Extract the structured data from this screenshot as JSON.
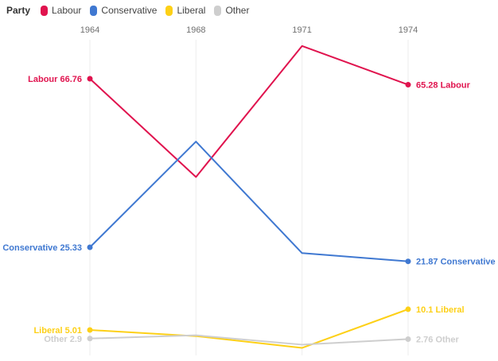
{
  "legend": {
    "title": "Party",
    "items": [
      {
        "label": "Labour",
        "color": "#e0134e"
      },
      {
        "label": "Conservative",
        "color": "#3f78d1"
      },
      {
        "label": "Liberal",
        "color": "#fdd017"
      },
      {
        "label": "Other",
        "color": "#cecece"
      }
    ]
  },
  "chart_data": {
    "type": "line",
    "x_axis": {
      "position": "top",
      "categories": [
        "1964",
        "1968",
        "1971",
        "1974"
      ]
    },
    "series": [
      {
        "name": "Labour",
        "color": "#e0134e",
        "values": [
          66.76,
          42.6,
          74.8,
          65.28
        ],
        "label_left": "Labour 66.76",
        "label_right": "65.28 Labour"
      },
      {
        "name": "Conservative",
        "color": "#3f78d1",
        "values": [
          25.33,
          51.3,
          23.9,
          21.87
        ],
        "label_left": "Conservative 25.33",
        "label_right": "21.87 Conservative"
      },
      {
        "name": "Liberal",
        "color": "#fdd017",
        "values": [
          5.01,
          3.5,
          0.6,
          10.1
        ],
        "label_left": "Liberal 5.01",
        "label_right": "10.1 Liberal"
      },
      {
        "name": "Other",
        "color": "#cecece",
        "values": [
          2.9,
          3.7,
          1.4,
          2.76
        ],
        "label_left": "Other 2.9",
        "label_right": "2.76 Other"
      }
    ],
    "labeled_points": "first and last only",
    "interior_values_estimated": true,
    "grid": "vertical-only",
    "legend_position": "top-left",
    "ylim": [
      0,
      80
    ]
  }
}
